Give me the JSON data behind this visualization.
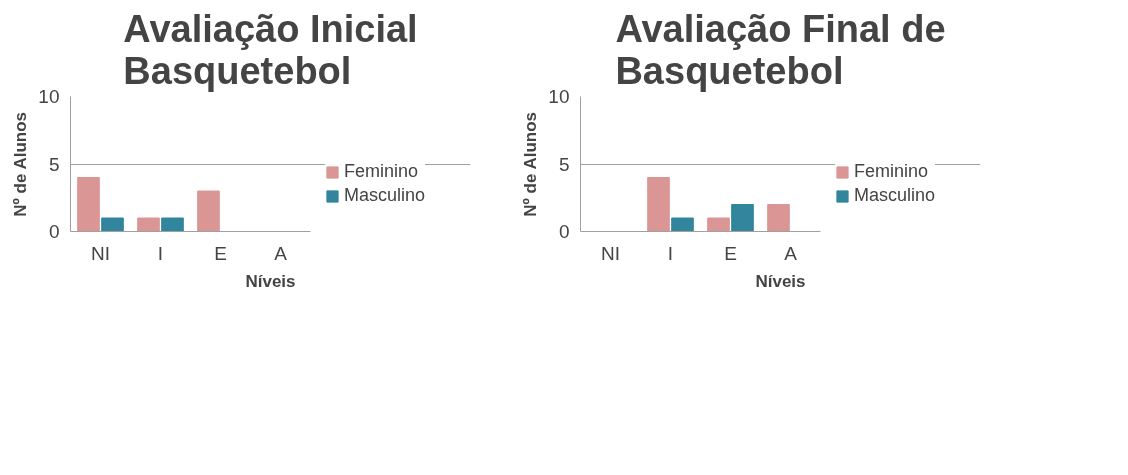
{
  "chart_data": [
    {
      "type": "bar",
      "title": "Avaliação Inicial\nBasquetebol",
      "xlabel": "Níveis",
      "ylabel": "Nº de Alunos",
      "categories": [
        "NI",
        "I",
        "E",
        "A"
      ],
      "series": [
        {
          "name": "Feminino",
          "color": "#d99694",
          "values": [
            4,
            1,
            3,
            0
          ]
        },
        {
          "name": "Masculino",
          "color": "#31859c",
          "values": [
            1,
            1,
            0,
            0
          ]
        }
      ],
      "ylim": [
        0,
        10
      ],
      "yticks": [
        0,
        5,
        10
      ],
      "grid": "y",
      "legend": "right"
    },
    {
      "type": "bar",
      "title": "Avaliação Final de\nBasquetebol",
      "xlabel": "Níveis",
      "ylabel": "Nº de Alunos",
      "categories": [
        "NI",
        "I",
        "E",
        "A"
      ],
      "series": [
        {
          "name": "Feminino",
          "color": "#d99694",
          "values": [
            0,
            4,
            1,
            2
          ]
        },
        {
          "name": "Masculino",
          "color": "#31859c",
          "values": [
            0,
            1,
            2,
            0
          ]
        }
      ],
      "ylim": [
        0,
        10
      ],
      "yticks": [
        0,
        5,
        10
      ],
      "grid": "y",
      "legend": "right"
    }
  ]
}
